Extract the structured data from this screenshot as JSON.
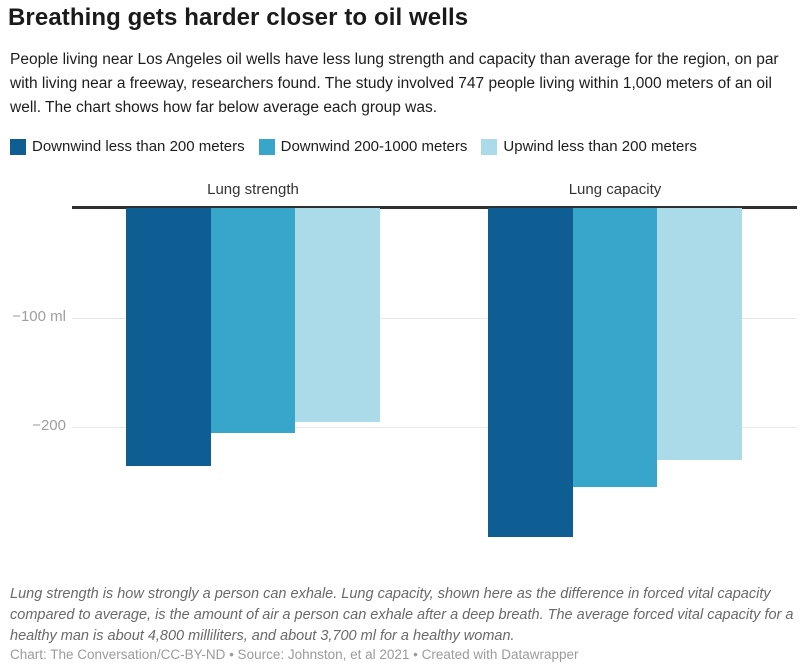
{
  "header": {
    "title": "Breathing gets harder closer to oil wells",
    "description": "People living near Los Angeles oil wells have less lung strength and capacity than average for the region, on par with living near a freeway, researchers found. The study involved 747 people living within 1,000 meters of an oil well. The chart shows how far below average each group was."
  },
  "chart_data": {
    "type": "bar",
    "categories": [
      "Lung strength",
      "Lung capacity"
    ],
    "series": [
      {
        "name": "Downwind less than 200 meters",
        "color": "#0e5e94",
        "values": [
          -235,
          -300
        ]
      },
      {
        "name": "Downwind 200-1000 meters",
        "color": "#38a6cb",
        "values": [
          -205,
          -255
        ]
      },
      {
        "name": "Upwind less than 200 meters",
        "color": "#abdbe9",
        "values": [
          -195,
          -230
        ]
      }
    ],
    "unit": "ml",
    "yticks": [
      {
        "value": -100,
        "label": "−100 ml"
      },
      {
        "value": -200,
        "label": "−200"
      }
    ],
    "ylim": [
      -330,
      0
    ],
    "grid": true,
    "legend_position": "top"
  },
  "footer": {
    "note": "Lung strength is how strongly a person can exhale. Lung capacity, shown here as the difference in forced vital capacity compared to average, is the amount of air a person can exhale after a deep breath. The average forced vital capacity for a healthy man is about 4,800 milliliters, and about 3,700 ml for a healthy woman.",
    "credit": "Chart: The Conversation/CC-BY-ND • Source: Johnston, et al 2021 • Created with Datawrapper"
  },
  "colors": {
    "zero_line": "#2f2f2f",
    "gridline": "#e8e8e8",
    "tick_label": "#9e9e9e",
    "text": "#1d1d1d"
  }
}
